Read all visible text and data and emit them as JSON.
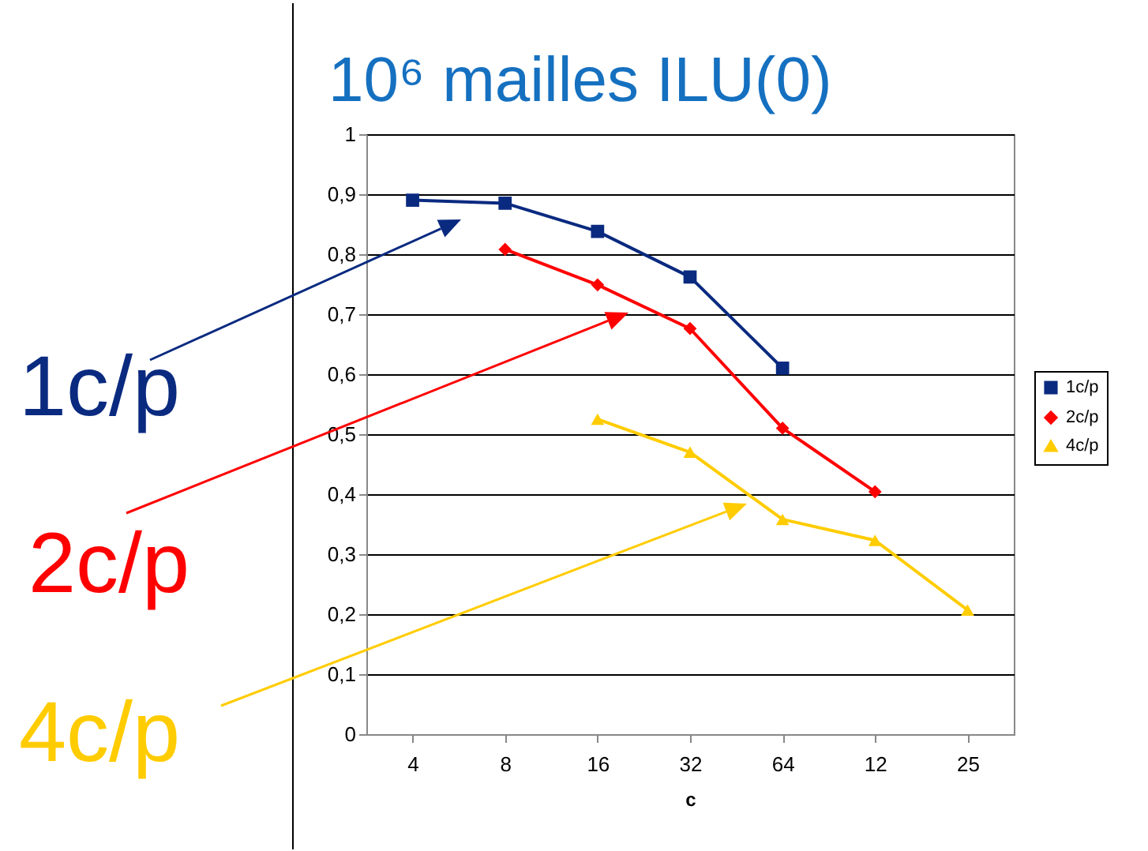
{
  "chart_data": {
    "type": "line",
    "title": "10⁶ mailles ILU(0)",
    "xlabel": "c",
    "categories": [
      "4",
      "8",
      "16",
      "32",
      "64",
      "12",
      "25"
    ],
    "series": [
      {
        "name": "1c/p",
        "color": "#0a2a80",
        "marker": "square",
        "values": [
          0.89,
          0.885,
          0.838,
          0.762,
          0.61,
          null,
          null
        ]
      },
      {
        "name": "2c/p",
        "color": "#ff0000",
        "marker": "diamond",
        "values": [
          null,
          0.808,
          0.749,
          0.676,
          0.51,
          0.404,
          null
        ]
      },
      {
        "name": "4c/p",
        "color": "#ffcc00",
        "marker": "triangle",
        "values": [
          null,
          null,
          0.525,
          0.47,
          0.358,
          0.323,
          0.207
        ]
      }
    ],
    "ylim": [
      0,
      1
    ],
    "yticks": [
      0,
      {
        "value": 0.1,
        "label": "0,1"
      },
      {
        "value": 0.2,
        "label": "0,2"
      },
      {
        "value": 0.3,
        "label": "0,3"
      },
      {
        "value": 0.4,
        "label": "0,4"
      },
      {
        "value": 0.5,
        "label": "0,5"
      },
      {
        "value": 0.6,
        "label": "0,6"
      },
      {
        "value": 0.7,
        "label": "0,7"
      },
      {
        "value": 0.8,
        "label": "0,8"
      },
      {
        "value": 0.9,
        "label": "0,9"
      },
      1
    ],
    "grid": "y",
    "legend": "right",
    "annotations": [
      "1c/p",
      "2c/p",
      "4c/p"
    ]
  }
}
